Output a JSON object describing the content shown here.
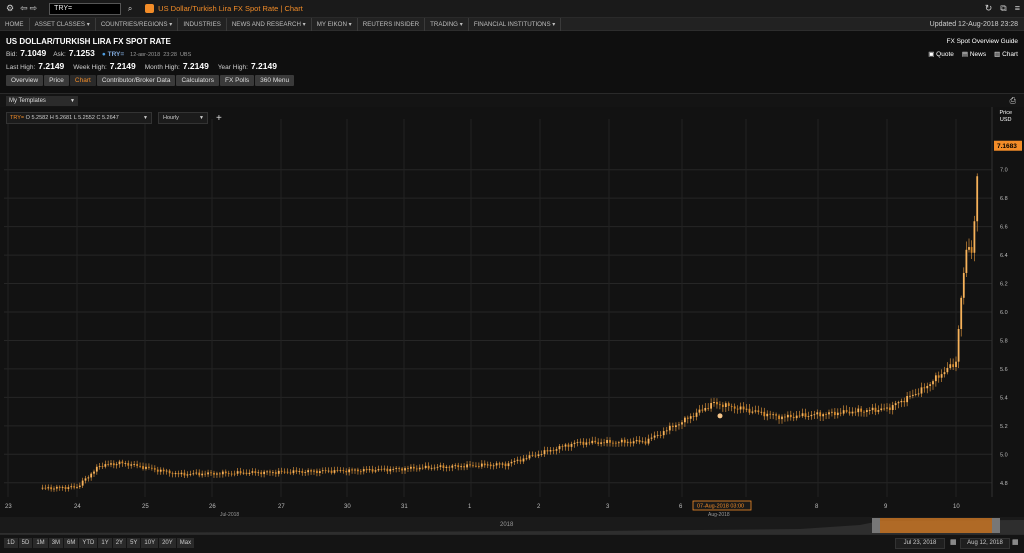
{
  "toolbar": {
    "search_value": "TRY=",
    "app_title": "US Dollar/Turkish Lira FX Spot Rate | Chart"
  },
  "nav": {
    "items": [
      "HOME",
      "ASSET CLASSES ▾",
      "COUNTRIES/REGIONS ▾",
      "INDUSTRIES",
      "NEWS AND RESEARCH ▾",
      "MY EIKON ▾",
      "REUTERS INSIDER",
      "TRADING ▾",
      "FINANCIAL INSTITUTIONS ▾"
    ],
    "updated": "Updated 12-Aug-2018 23:28"
  },
  "header": {
    "title": "US DOLLAR/TURKISH LIRA FX SPOT RATE",
    "guide": "FX Spot Overview Guide",
    "bid_label": "Bid:",
    "bid": "7.1049",
    "ask_label": "Ask:",
    "ask": "7.1253",
    "ric": "TRY=",
    "quote_date": "12-авг-2018",
    "quote_time": "23:28",
    "source": "UBS",
    "last_high_label": "Last High:",
    "last_high": "7.2149",
    "week_high_label": "Week High:",
    "week_high": "7.2149",
    "month_high_label": "Month High:",
    "month_high": "7.2149",
    "year_high_label": "Year High:",
    "year_high": "7.2149",
    "links": [
      "Quote",
      "News",
      "Chart"
    ]
  },
  "tabs": [
    "Overview",
    "Price",
    "Chart",
    "Contributor/Broker Data",
    "Calculators",
    "FX Polls",
    "360 Menu"
  ],
  "active_tab": "Chart",
  "templates": {
    "label": "My Templates"
  },
  "chart_toolbar": {
    "ric": "TRY=",
    "open": "O 5.2582",
    "high": "H 5.2681",
    "low": "L 5.2552",
    "close": "C 5.2647",
    "interval": "Hourly",
    "add": "+"
  },
  "chart_data": {
    "type": "candlestick",
    "instrument": "USD/TRY",
    "interval": "Hourly",
    "price_header": [
      "Price",
      "USD"
    ],
    "last_value": "7.1683",
    "ylim": [
      4.7,
      7.3
    ],
    "yticks": [
      "7.0",
      "6.8",
      "6.6",
      "6.4",
      "6.2",
      "6.0",
      "5.8",
      "5.6",
      "5.4",
      "5.2",
      "5.0",
      "4.8"
    ],
    "xlim": [
      "2018-07-23",
      "2018-08-12"
    ],
    "xticks": [
      "23",
      "24",
      "25",
      "26",
      "27",
      "30",
      "31",
      "1",
      "2",
      "3",
      "6",
      "7",
      "8",
      "9",
      "10"
    ],
    "xticks_secondary": [
      "Jul-2018",
      "Aug-2018"
    ],
    "crosshair_label": "07-Aug-2018 03:00",
    "path": [
      [
        "2018-07-23",
        4.76
      ],
      [
        "2018-07-24",
        4.77
      ],
      [
        "2018-07-24",
        4.92
      ],
      [
        "2018-07-24",
        4.94
      ],
      [
        "2018-07-25",
        4.86
      ],
      [
        "2018-07-26",
        4.87
      ],
      [
        "2018-07-27",
        4.88
      ],
      [
        "2018-07-30",
        4.89
      ],
      [
        "2018-07-31",
        4.91
      ],
      [
        "2018-08-01",
        4.93
      ],
      [
        "2018-08-02",
        5.08
      ],
      [
        "2018-08-03",
        5.09
      ],
      [
        "2018-08-06",
        5.23
      ],
      [
        "2018-08-06",
        5.36
      ],
      [
        "2018-08-07",
        5.26
      ],
      [
        "2018-08-08",
        5.3
      ],
      [
        "2018-08-09",
        5.32
      ],
      [
        "2018-08-09",
        5.45
      ],
      [
        "2018-08-10",
        5.65
      ],
      [
        "2018-08-10",
        6.1
      ],
      [
        "2018-08-10",
        6.45
      ],
      [
        "2018-08-10",
        6.42
      ],
      [
        "2018-08-10",
        7.17
      ]
    ]
  },
  "navigator": {
    "year_label": "2018"
  },
  "bottombar": {
    "ranges": [
      "1D",
      "5D",
      "1M",
      "3M",
      "6M",
      "YTD",
      "1Y",
      "2Y",
      "5Y",
      "10Y",
      "20Y",
      "Max"
    ],
    "date_from": "Jul 23, 2018",
    "date_to": "Aug 12, 2018"
  }
}
